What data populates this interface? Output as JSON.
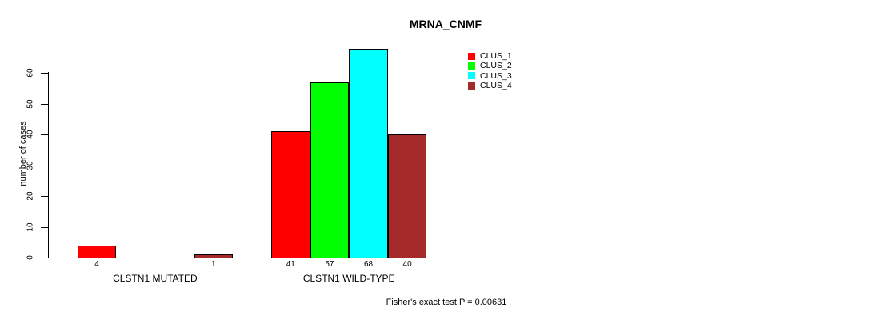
{
  "chart_data": {
    "type": "bar",
    "title": "MRNA_CNMF",
    "ylabel": "number of cases",
    "xlabel": "",
    "categories": [
      "CLSTN1 MUTATED",
      "CLSTN1 WILD-TYPE"
    ],
    "series": [
      {
        "name": "CLUS_1",
        "color": "#ff0000",
        "values": [
          4,
          41
        ]
      },
      {
        "name": "CLUS_2",
        "color": "#00ff00",
        "values": [
          0,
          57
        ]
      },
      {
        "name": "CLUS_3",
        "color": "#00ffff",
        "values": [
          0,
          68
        ]
      },
      {
        "name": "CLUS_4",
        "color": "#a52a2a",
        "values": [
          1,
          40
        ]
      }
    ],
    "bar_value_labels": [
      [
        "4",
        "",
        "",
        "1"
      ],
      [
        "41",
        "57",
        "68",
        "40"
      ]
    ],
    "yticks": [
      0,
      10,
      20,
      30,
      40,
      50,
      60
    ],
    "ylim": [
      0,
      68
    ],
    "grid": false,
    "legend_position": "top-right",
    "legend": [
      "CLUS_1",
      "CLUS_2",
      "CLUS_3",
      "CLUS_4"
    ],
    "annotation": "Fisher's exact test P = 0.00631",
    "axis_color": "#000000",
    "background_color": "#ffffff"
  }
}
